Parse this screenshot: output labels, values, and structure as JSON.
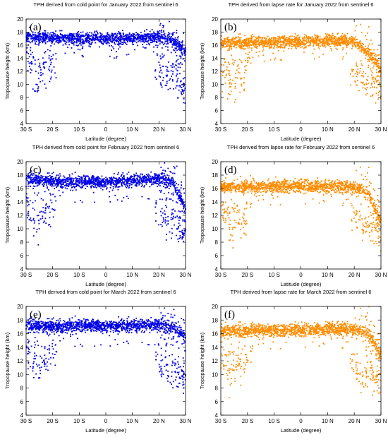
{
  "figure": {
    "panels": [
      {
        "title": "TPH derived from cold point for January 2022 from sentinel 6",
        "label": "(a)",
        "xlabel": "Latitude (degree)",
        "ylabel": "Tropopause height (km)"
      },
      {
        "title": "TPH derived from lapse rate for January 2022 from sentinel 6",
        "label": "(b)",
        "xlabel": "Latitude (degree)",
        "ylabel": "Tropopause height (km)"
      },
      {
        "title": "TPH derived from cold point for February 2022 from sentinel 6",
        "label": "(c)",
        "xlabel": "Latitude (degree)",
        "ylabel": "Tropopause height (km)"
      },
      {
        "title": "TPH derived from lapse rate for February 2022 from sentinel 6",
        "label": "(d)",
        "xlabel": "Latitude (degree)",
        "ylabel": "Tropopause height (km)"
      },
      {
        "title": "TPH derived from cold point for March 2022 from sentinel 6",
        "label": "(e)",
        "xlabel": "Latitude (degree)",
        "ylabel": "Tropopause height (km)"
      },
      {
        "title": "TPH derived from lapse rate for March 2022 from sentinel 6",
        "label": "(f)",
        "xlabel": "Latitude (degree)",
        "ylabel": "Tropopause height (km)"
      }
    ]
  },
  "chart_data": [
    {
      "type": "scatter",
      "title": "TPH derived from cold point for January 2022 from sentinel 6",
      "xlabel": "Latitude (degree)",
      "ylabel": "Tropopause height (km)",
      "x_ticks": [
        "30 S",
        "20 S",
        "10 S",
        "0",
        "10 N",
        "20 N",
        "30 N"
      ],
      "y_ticks": [
        "4",
        "6",
        "8",
        "10",
        "12",
        "14",
        "16",
        "18",
        "20"
      ],
      "xlim": [
        -30,
        30
      ],
      "ylim": [
        4,
        20
      ],
      "color": "#0000e6",
      "grid": false,
      "x": [
        -30,
        -25,
        -20,
        -15,
        -10,
        -5,
        0,
        5,
        10,
        15,
        20,
        25,
        30
      ],
      "y": [
        17.3,
        17.2,
        17.1,
        17.0,
        17.0,
        17.0,
        17.0,
        17.0,
        17.1,
        17.2,
        17.3,
        16.8,
        15.0
      ],
      "outlier_x": [
        -29.5,
        -28,
        -26,
        -24,
        -22,
        -20,
        20,
        22,
        24,
        26,
        28,
        29,
        30
      ],
      "outlier_y": [
        14.5,
        13.5,
        10.0,
        13.0,
        12.5,
        14.0,
        12.5,
        11.5,
        11.0,
        12.0,
        10.5,
        9.5,
        9.0
      ]
    },
    {
      "type": "scatter",
      "title": "TPH derived from lapse rate for January 2022 from sentinel 6",
      "xlabel": "Latitude (degree)",
      "ylabel": "Tropopause height (km)",
      "x_ticks": [
        "30 S",
        "20 S",
        "10 S",
        "0",
        "10 N",
        "20 N",
        "30 N"
      ],
      "y_ticks": [
        "4",
        "6",
        "8",
        "10",
        "12",
        "14",
        "16",
        "18",
        "20"
      ],
      "xlim": [
        -30,
        30
      ],
      "ylim": [
        4,
        20
      ],
      "color": "#ff8c00",
      "grid": false,
      "x": [
        -30,
        -25,
        -20,
        -15,
        -10,
        -5,
        0,
        5,
        10,
        15,
        20,
        25,
        30
      ],
      "y": [
        16.3,
        16.4,
        16.4,
        16.4,
        16.5,
        16.5,
        16.6,
        16.6,
        16.7,
        16.7,
        16.6,
        15.0,
        12.5
      ],
      "outlier_x": [
        -29.5,
        -28,
        -26,
        -24,
        -22,
        -20,
        20,
        22,
        24,
        26,
        28,
        29,
        30
      ],
      "outlier_y": [
        13.0,
        11.5,
        9.5,
        12.0,
        11.5,
        13.5,
        11.5,
        11.0,
        10.5,
        11.0,
        10.0,
        9.5,
        9.0
      ]
    },
    {
      "type": "scatter",
      "title": "TPH derived from cold point for February 2022 from sentinel 6",
      "xlabel": "Latitude (degree)",
      "ylabel": "Tropopause height (km)",
      "x_ticks": [
        "30 S",
        "20 S",
        "10 S",
        "0",
        "10 N",
        "20 N",
        "30 N"
      ],
      "y_ticks": [
        "4",
        "6",
        "8",
        "10",
        "12",
        "14",
        "16",
        "18",
        "20"
      ],
      "xlim": [
        -30,
        30
      ],
      "ylim": [
        4,
        20
      ],
      "color": "#0000e6",
      "grid": false,
      "x": [
        -30,
        -25,
        -20,
        -15,
        -10,
        -5,
        0,
        5,
        10,
        15,
        20,
        25,
        30
      ],
      "y": [
        17.4,
        17.3,
        17.2,
        17.0,
        16.9,
        16.9,
        16.9,
        17.0,
        17.2,
        17.3,
        17.4,
        17.0,
        13.0
      ],
      "outlier_x": [
        -29.5,
        -28,
        -26,
        -24,
        -22,
        -20,
        20,
        22,
        24,
        26,
        28,
        29,
        30
      ],
      "outlier_y": [
        14.0,
        13.0,
        10.5,
        12.5,
        12.0,
        14.0,
        12.5,
        11.5,
        10.5,
        11.5,
        10.0,
        9.5,
        9.0
      ]
    },
    {
      "type": "scatter",
      "title": "TPH derived from lapse rate for February 2022 from sentinel 6",
      "xlabel": "Latitude (degree)",
      "ylabel": "Tropopause height (km)",
      "x_ticks": [
        "30 S",
        "20 S",
        "10 S",
        "0",
        "10 N",
        "20 N",
        "30 N"
      ],
      "y_ticks": [
        "4",
        "6",
        "8",
        "10",
        "12",
        "14",
        "16",
        "18",
        "20"
      ],
      "xlim": [
        -30,
        30
      ],
      "ylim": [
        4,
        20
      ],
      "color": "#ff8c00",
      "grid": false,
      "x": [
        -30,
        -25,
        -20,
        -15,
        -10,
        -5,
        0,
        5,
        10,
        15,
        20,
        25,
        30
      ],
      "y": [
        16.2,
        16.3,
        16.3,
        16.3,
        16.3,
        16.3,
        16.3,
        16.3,
        16.3,
        16.3,
        16.2,
        15.5,
        11.0
      ],
      "outlier_x": [
        -29.5,
        -28,
        -26,
        -24,
        -22,
        -20,
        20,
        22,
        24,
        26,
        28,
        29,
        30
      ],
      "outlier_y": [
        13.5,
        12.0,
        10.0,
        12.0,
        11.0,
        13.0,
        11.5,
        11.0,
        10.5,
        10.5,
        10.0,
        9.5,
        9.5
      ]
    },
    {
      "type": "scatter",
      "title": "TPH derived from cold point for March 2022 from sentinel 6",
      "xlabel": "Latitude (degree)",
      "ylabel": "Tropopause height (km)",
      "x_ticks": [
        "30 S",
        "20 S",
        "10 S",
        "0",
        "10 N",
        "20 N",
        "30 N"
      ],
      "y_ticks": [
        "4",
        "6",
        "8",
        "10",
        "12",
        "14",
        "16",
        "18",
        "20"
      ],
      "xlim": [
        -30,
        30
      ],
      "ylim": [
        4,
        20
      ],
      "color": "#0000e6",
      "grid": false,
      "x": [
        -30,
        -25,
        -20,
        -15,
        -10,
        -5,
        0,
        5,
        10,
        15,
        20,
        25,
        30
      ],
      "y": [
        17.2,
        17.2,
        17.1,
        17.1,
        17.1,
        17.1,
        17.1,
        17.1,
        17.2,
        17.2,
        17.3,
        17.0,
        15.5
      ],
      "outlier_x": [
        -29.5,
        -28,
        -26,
        -24,
        -22,
        -20,
        20,
        22,
        24,
        26,
        28,
        29,
        30
      ],
      "outlier_y": [
        14.0,
        13.0,
        11.0,
        12.5,
        12.0,
        13.5,
        12.0,
        11.0,
        10.0,
        11.0,
        9.5,
        9.5,
        9.0
      ]
    },
    {
      "type": "scatter",
      "title": "TPH derived from lapse rate for March 2022 from sentinel 6",
      "xlabel": "Latitude (degree)",
      "ylabel": "Tropopause height (km)",
      "x_ticks": [
        "30 S",
        "20 S",
        "10 S",
        "0",
        "10 N",
        "20 N",
        "30 N"
      ],
      "y_ticks": [
        "4",
        "6",
        "8",
        "10",
        "12",
        "14",
        "16",
        "18",
        "20"
      ],
      "xlim": [
        -30,
        30
      ],
      "ylim": [
        4,
        20
      ],
      "color": "#ff8c00",
      "grid": false,
      "x": [
        -30,
        -25,
        -20,
        -15,
        -10,
        -5,
        0,
        5,
        10,
        15,
        20,
        25,
        30
      ],
      "y": [
        16.3,
        16.4,
        16.4,
        16.5,
        16.5,
        16.5,
        16.6,
        16.6,
        16.7,
        16.7,
        16.6,
        16.2,
        13.0
      ],
      "outlier_x": [
        -29.5,
        -28,
        -26,
        -24,
        -22,
        -20,
        20,
        22,
        24,
        26,
        28,
        29,
        30
      ],
      "outlier_y": [
        13.0,
        12.0,
        10.0,
        12.0,
        11.0,
        13.0,
        11.5,
        10.5,
        10.0,
        10.5,
        9.5,
        9.5,
        9.0
      ]
    }
  ]
}
